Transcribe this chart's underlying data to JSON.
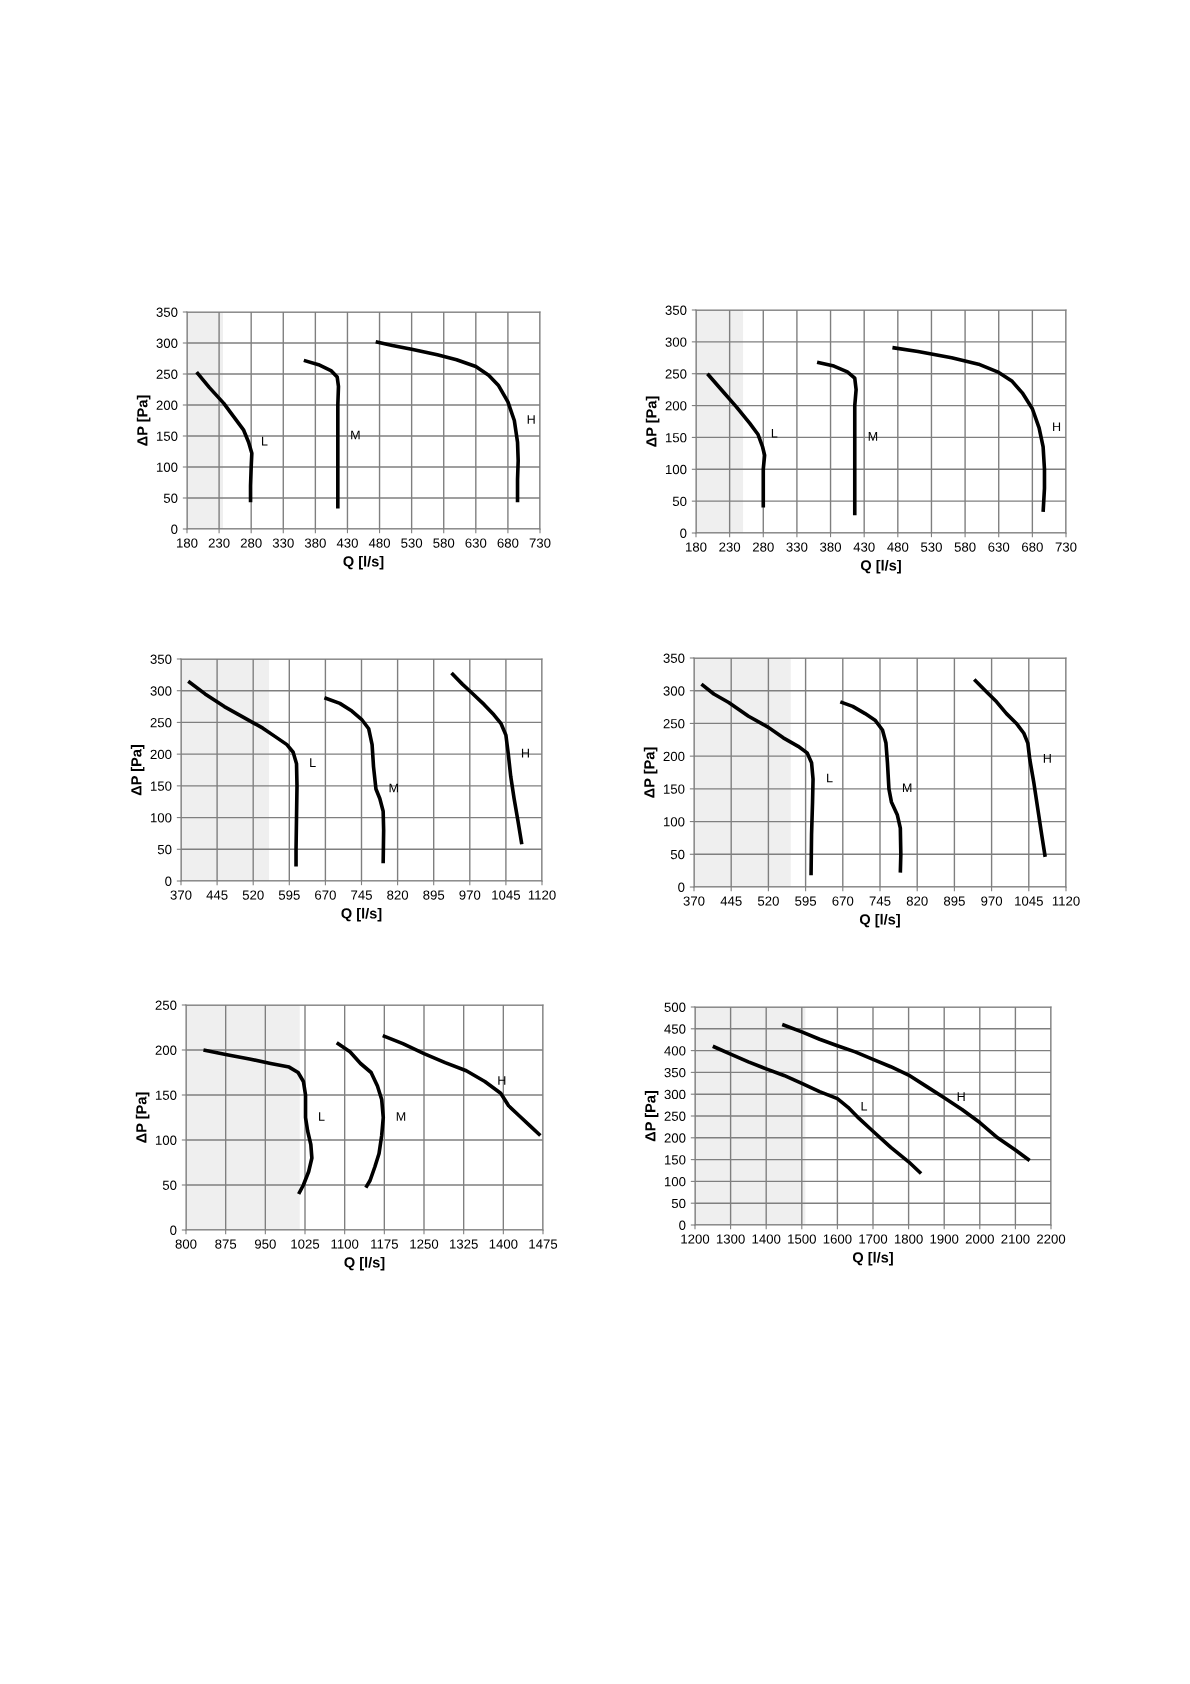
{
  "chart_data": [
    {
      "type": "line",
      "xlabel": "Q [l/s]",
      "ylabel": "ΔP [Pa]",
      "xlim": [
        180,
        730
      ],
      "xticks": [
        180,
        230,
        280,
        330,
        380,
        430,
        480,
        530,
        580,
        630,
        680,
        730
      ],
      "ylim": [
        0,
        350
      ],
      "yticks": [
        0,
        50,
        100,
        150,
        200,
        250,
        300,
        350
      ],
      "grid": true,
      "legend": false,
      "line_style": "solid",
      "marker": "none",
      "bands": [
        {
          "axis": "x",
          "from": 180,
          "to": 236,
          "color": "#efefef"
        }
      ],
      "series": [
        {
          "name": "L",
          "color": "#000000",
          "x": [
            195,
            215,
            237,
            255,
            268,
            276,
            281,
            280,
            279,
            279
          ],
          "values": [
            253,
            228,
            203,
            178,
            160,
            140,
            122,
            100,
            70,
            43
          ]
        },
        {
          "name": "M",
          "color": "#000000",
          "x": [
            362,
            385,
            405,
            414,
            416,
            415,
            415,
            415,
            415
          ],
          "values": [
            272,
            265,
            255,
            245,
            230,
            200,
            150,
            100,
            33
          ]
        },
        {
          "name": "H",
          "color": "#000000",
          "x": [
            474,
            500,
            530,
            570,
            600,
            630,
            650,
            665,
            680,
            690,
            695,
            696,
            695,
            695
          ],
          "values": [
            302,
            296,
            290,
            281,
            273,
            262,
            248,
            232,
            205,
            175,
            140,
            110,
            80,
            43
          ]
        }
      ]
    },
    {
      "type": "line",
      "xlabel": "Q [l/s]",
      "ylabel": "ΔP [Pa]",
      "xlim": [
        180,
        730
      ],
      "xticks": [
        180,
        230,
        280,
        330,
        380,
        430,
        480,
        530,
        580,
        630,
        680,
        730
      ],
      "ylim": [
        0,
        350
      ],
      "yticks": [
        0,
        50,
        100,
        150,
        200,
        250,
        300,
        350
      ],
      "grid": true,
      "legend": false,
      "line_style": "solid",
      "marker": "none",
      "bands": [
        {
          "axis": "x",
          "from": 180,
          "to": 250,
          "color": "#efefef"
        }
      ],
      "series": [
        {
          "name": "L",
          "color": "#000000",
          "x": [
            197,
            220,
            240,
            260,
            272,
            279,
            282,
            280,
            280
          ],
          "values": [
            250,
            222,
            198,
            172,
            155,
            135,
            122,
            100,
            40
          ]
        },
        {
          "name": "M",
          "color": "#000000",
          "x": [
            360,
            385,
            405,
            416,
            418,
            416,
            416,
            416,
            416
          ],
          "values": [
            268,
            262,
            253,
            243,
            225,
            200,
            150,
            100,
            28
          ]
        },
        {
          "name": "H",
          "color": "#000000",
          "x": [
            472,
            510,
            560,
            600,
            630,
            650,
            665,
            680,
            690,
            696,
            698,
            698,
            696
          ],
          "values": [
            291,
            285,
            275,
            265,
            252,
            238,
            220,
            195,
            165,
            135,
            100,
            70,
            33
          ]
        }
      ]
    },
    {
      "type": "line",
      "xlabel": "Q [l/s]",
      "ylabel": "ΔP [Pa]",
      "xlim": [
        370,
        1120
      ],
      "xticks": [
        370,
        445,
        520,
        595,
        670,
        745,
        820,
        895,
        970,
        1045,
        1120
      ],
      "ylim": [
        0,
        350
      ],
      "yticks": [
        0,
        50,
        100,
        150,
        200,
        250,
        300,
        350
      ],
      "grid": true,
      "legend": false,
      "line_style": "solid",
      "marker": "none",
      "bands": [
        {
          "axis": "x",
          "from": 370,
          "to": 553,
          "color": "#efefef"
        }
      ],
      "series": [
        {
          "name": "L",
          "color": "#000000",
          "x": [
            385,
            420,
            460,
            500,
            540,
            565,
            590,
            603,
            610,
            611,
            610,
            609,
            609
          ],
          "values": [
            315,
            295,
            275,
            258,
            241,
            228,
            215,
            203,
            185,
            150,
            100,
            50,
            23
          ]
        },
        {
          "name": "M",
          "color": "#000000",
          "x": [
            668,
            700,
            725,
            745,
            760,
            767,
            770,
            775,
            783,
            790,
            791,
            790
          ],
          "values": [
            289,
            280,
            268,
            255,
            240,
            215,
            180,
            145,
            130,
            110,
            80,
            28
          ]
        },
        {
          "name": "H",
          "color": "#000000",
          "x": [
            932,
            955,
            975,
            1000,
            1020,
            1035,
            1045,
            1050,
            1055,
            1062,
            1070,
            1078
          ],
          "values": [
            328,
            310,
            296,
            278,
            262,
            248,
            230,
            200,
            165,
            130,
            95,
            58
          ]
        }
      ]
    },
    {
      "type": "line",
      "xlabel": "Q [l/s]",
      "ylabel": "ΔP [Pa]",
      "xlim": [
        370,
        1120
      ],
      "xticks": [
        370,
        445,
        520,
        595,
        670,
        745,
        820,
        895,
        970,
        1045,
        1120
      ],
      "ylim": [
        0,
        350
      ],
      "yticks": [
        0,
        50,
        100,
        150,
        200,
        250,
        300,
        350
      ],
      "grid": true,
      "legend": false,
      "line_style": "solid",
      "marker": "none",
      "bands": [
        {
          "axis": "x",
          "from": 370,
          "to": 565,
          "color": "#efefef"
        }
      ],
      "series": [
        {
          "name": "L",
          "color": "#000000",
          "x": [
            385,
            410,
            440,
            480,
            520,
            550,
            580,
            598,
            607,
            610,
            609,
            607,
            606
          ],
          "values": [
            310,
            295,
            282,
            261,
            244,
            228,
            215,
            205,
            190,
            165,
            130,
            80,
            18
          ]
        },
        {
          "name": "M",
          "color": "#000000",
          "x": [
            665,
            690,
            715,
            735,
            750,
            757,
            760,
            763,
            768,
            780,
            786,
            787,
            786
          ],
          "values": [
            283,
            276,
            265,
            255,
            240,
            220,
            190,
            150,
            130,
            110,
            90,
            50,
            22
          ]
        },
        {
          "name": "H",
          "color": "#000000",
          "x": [
            935,
            960,
            980,
            1000,
            1020,
            1035,
            1043,
            1047,
            1055,
            1063,
            1071,
            1078
          ],
          "values": [
            317,
            298,
            283,
            265,
            250,
            235,
            220,
            195,
            160,
            120,
            80,
            46
          ]
        }
      ]
    },
    {
      "type": "line",
      "xlabel": "Q [l/s]",
      "ylabel": "ΔP [Pa]",
      "xlim": [
        800,
        1475
      ],
      "xticks": [
        800,
        875,
        950,
        1025,
        1100,
        1175,
        1250,
        1325,
        1400,
        1475
      ],
      "ylim": [
        0,
        250
      ],
      "yticks": [
        0,
        50,
        100,
        150,
        200,
        250
      ],
      "grid": true,
      "legend": false,
      "line_style": "solid",
      "marker": "none",
      "bands": [
        {
          "axis": "x",
          "from": 800,
          "to": 1015,
          "color": "#efefef"
        }
      ],
      "series": [
        {
          "name": "L",
          "color": "#000000",
          "x": [
            833,
            875,
            920,
            960,
            995,
            1012,
            1022,
            1026,
            1026,
            1030,
            1036,
            1038,
            1032,
            1022,
            1013
          ],
          "values": [
            200,
            195,
            190,
            185,
            181,
            175,
            165,
            150,
            125,
            110,
            95,
            80,
            65,
            50,
            40
          ]
        },
        {
          "name": "M",
          "color": "#000000",
          "x": [
            1085,
            1110,
            1130,
            1150,
            1162,
            1170,
            1173,
            1170,
            1165,
            1157,
            1148,
            1140
          ],
          "values": [
            208,
            198,
            185,
            175,
            160,
            145,
            125,
            105,
            85,
            70,
            55,
            47
          ]
        },
        {
          "name": "H",
          "color": "#000000",
          "x": [
            1172,
            1210,
            1250,
            1290,
            1330,
            1365,
            1395,
            1410,
            1430,
            1450,
            1470
          ],
          "values": [
            216,
            207,
            196,
            186,
            177,
            165,
            152,
            138,
            127,
            116,
            105
          ]
        }
      ]
    },
    {
      "type": "line",
      "xlabel": "Q [l/s]",
      "ylabel": "ΔP [Pa]",
      "xlim": [
        1200,
        2200
      ],
      "xticks": [
        1200,
        1300,
        1400,
        1500,
        1600,
        1700,
        1800,
        1900,
        2000,
        2100,
        2200
      ],
      "ylim": [
        0,
        500
      ],
      "yticks": [
        0,
        50,
        100,
        150,
        200,
        250,
        300,
        350,
        400,
        450,
        500
      ],
      "grid": true,
      "legend": false,
      "line_style": "solid",
      "marker": "none",
      "bands": [
        {
          "axis": "x",
          "from": 1200,
          "to": 1510,
          "color": "#efefef"
        }
      ],
      "series": [
        {
          "name": "L",
          "color": "#000000",
          "x": [
            1250,
            1300,
            1350,
            1400,
            1450,
            1500,
            1550,
            1600,
            1630,
            1660,
            1700,
            1750,
            1800,
            1835
          ],
          "values": [
            410,
            392,
            374,
            358,
            343,
            325,
            306,
            290,
            270,
            245,
            215,
            178,
            145,
            118
          ]
        },
        {
          "name": "H",
          "color": "#000000",
          "x": [
            1445,
            1500,
            1550,
            1600,
            1650,
            1700,
            1750,
            1800,
            1850,
            1900,
            1950,
            2000,
            2050,
            2100,
            2140
          ],
          "values": [
            460,
            443,
            426,
            411,
            397,
            380,
            363,
            344,
            318,
            292,
            265,
            235,
            200,
            172,
            148
          ]
        }
      ]
    }
  ]
}
